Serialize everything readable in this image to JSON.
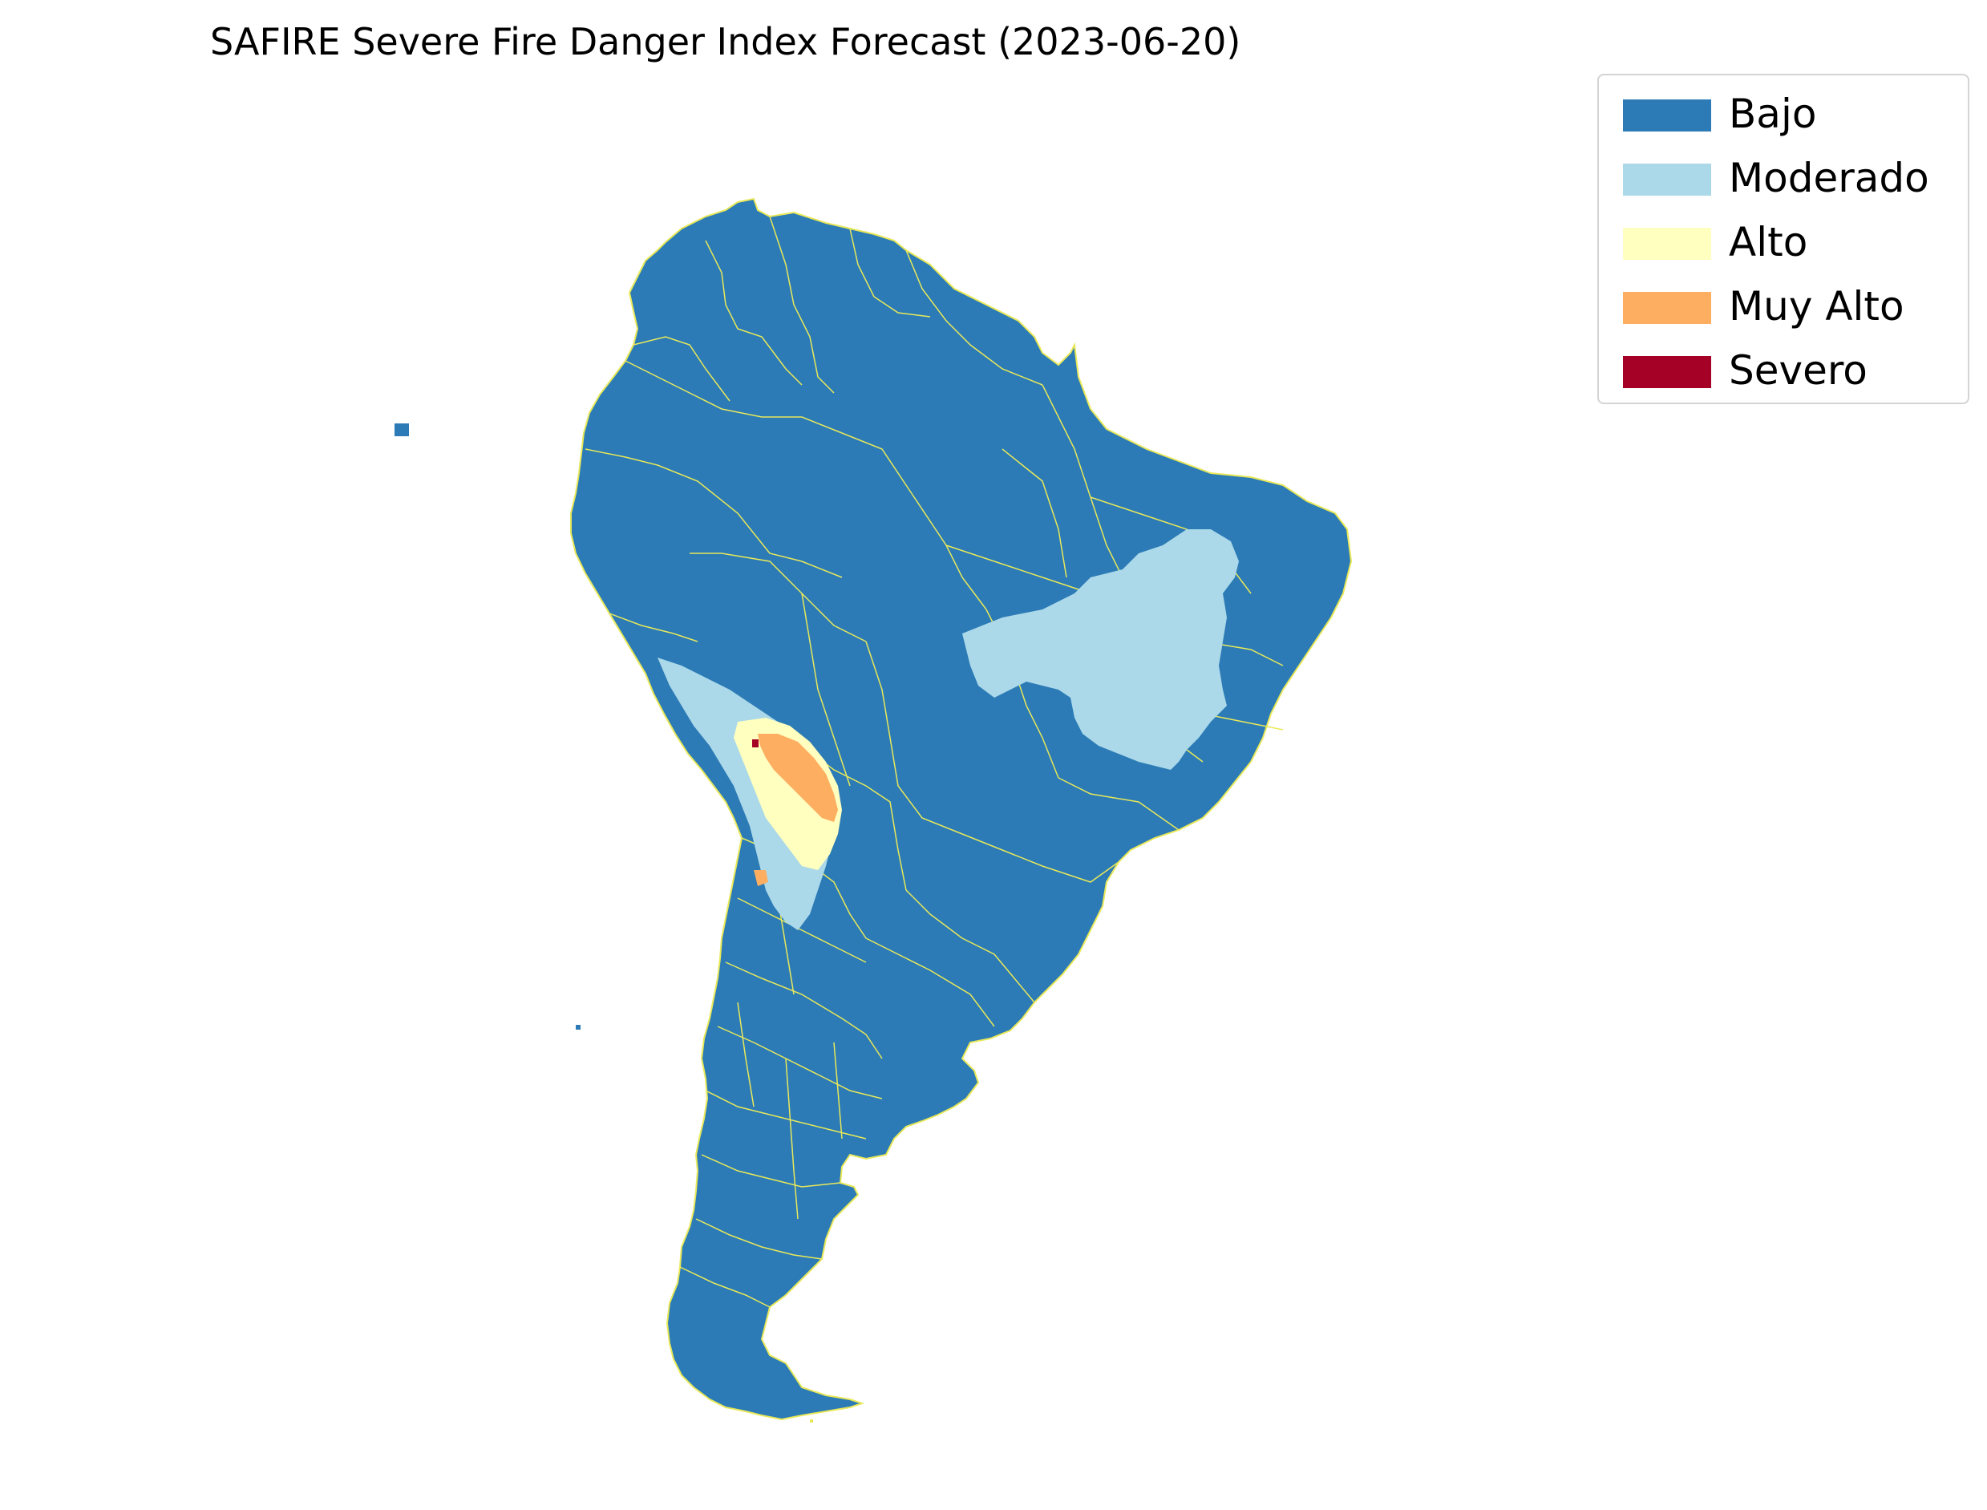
{
  "title": "SAFIRE Severe Fire Danger Index Forecast (2023-06-20)",
  "legend": {
    "items": [
      {
        "label": "Bajo",
        "color": "#2c7bb6"
      },
      {
        "label": "Moderado",
        "color": "#abd9e9"
      },
      {
        "label": "Alto",
        "color": "#ffffbf"
      },
      {
        "label": "Muy Alto",
        "color": "#fdae61"
      },
      {
        "label": "Severo",
        "color": "#a50026"
      }
    ]
  },
  "map": {
    "region": "South America",
    "boundary_color": "#e8e85a",
    "background": "#ffffff"
  }
}
